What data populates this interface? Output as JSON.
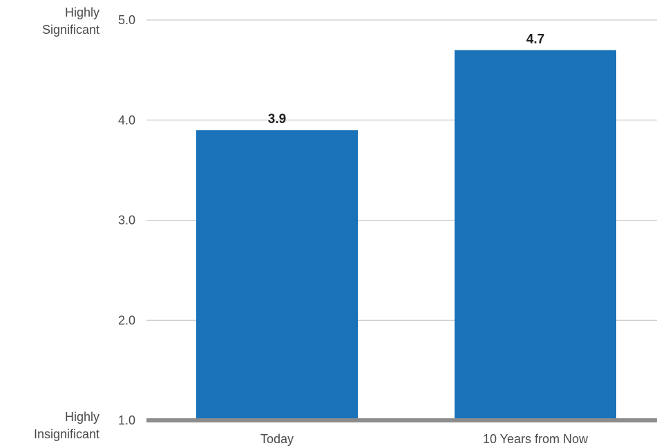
{
  "chart_data": {
    "type": "bar",
    "categories": [
      "Today",
      "10 Years from Now"
    ],
    "values": [
      3.9,
      4.7
    ],
    "data_labels": [
      "3.9",
      "4.7"
    ],
    "ylim": [
      1.0,
      5.0
    ],
    "yticks": [
      1.0,
      2.0,
      3.0,
      4.0,
      5.0
    ],
    "ytick_labels": [
      "1.0",
      "2.0",
      "3.0",
      "4.0",
      "5.0"
    ],
    "y_top_label": [
      "Highly",
      "Significant"
    ],
    "y_bottom_label": [
      "Highly",
      "Insignificant"
    ],
    "grid": true,
    "colors": {
      "bar": "#1a72b8",
      "grid": "#bdbdbd",
      "baseline": "#8c8c8c"
    }
  }
}
